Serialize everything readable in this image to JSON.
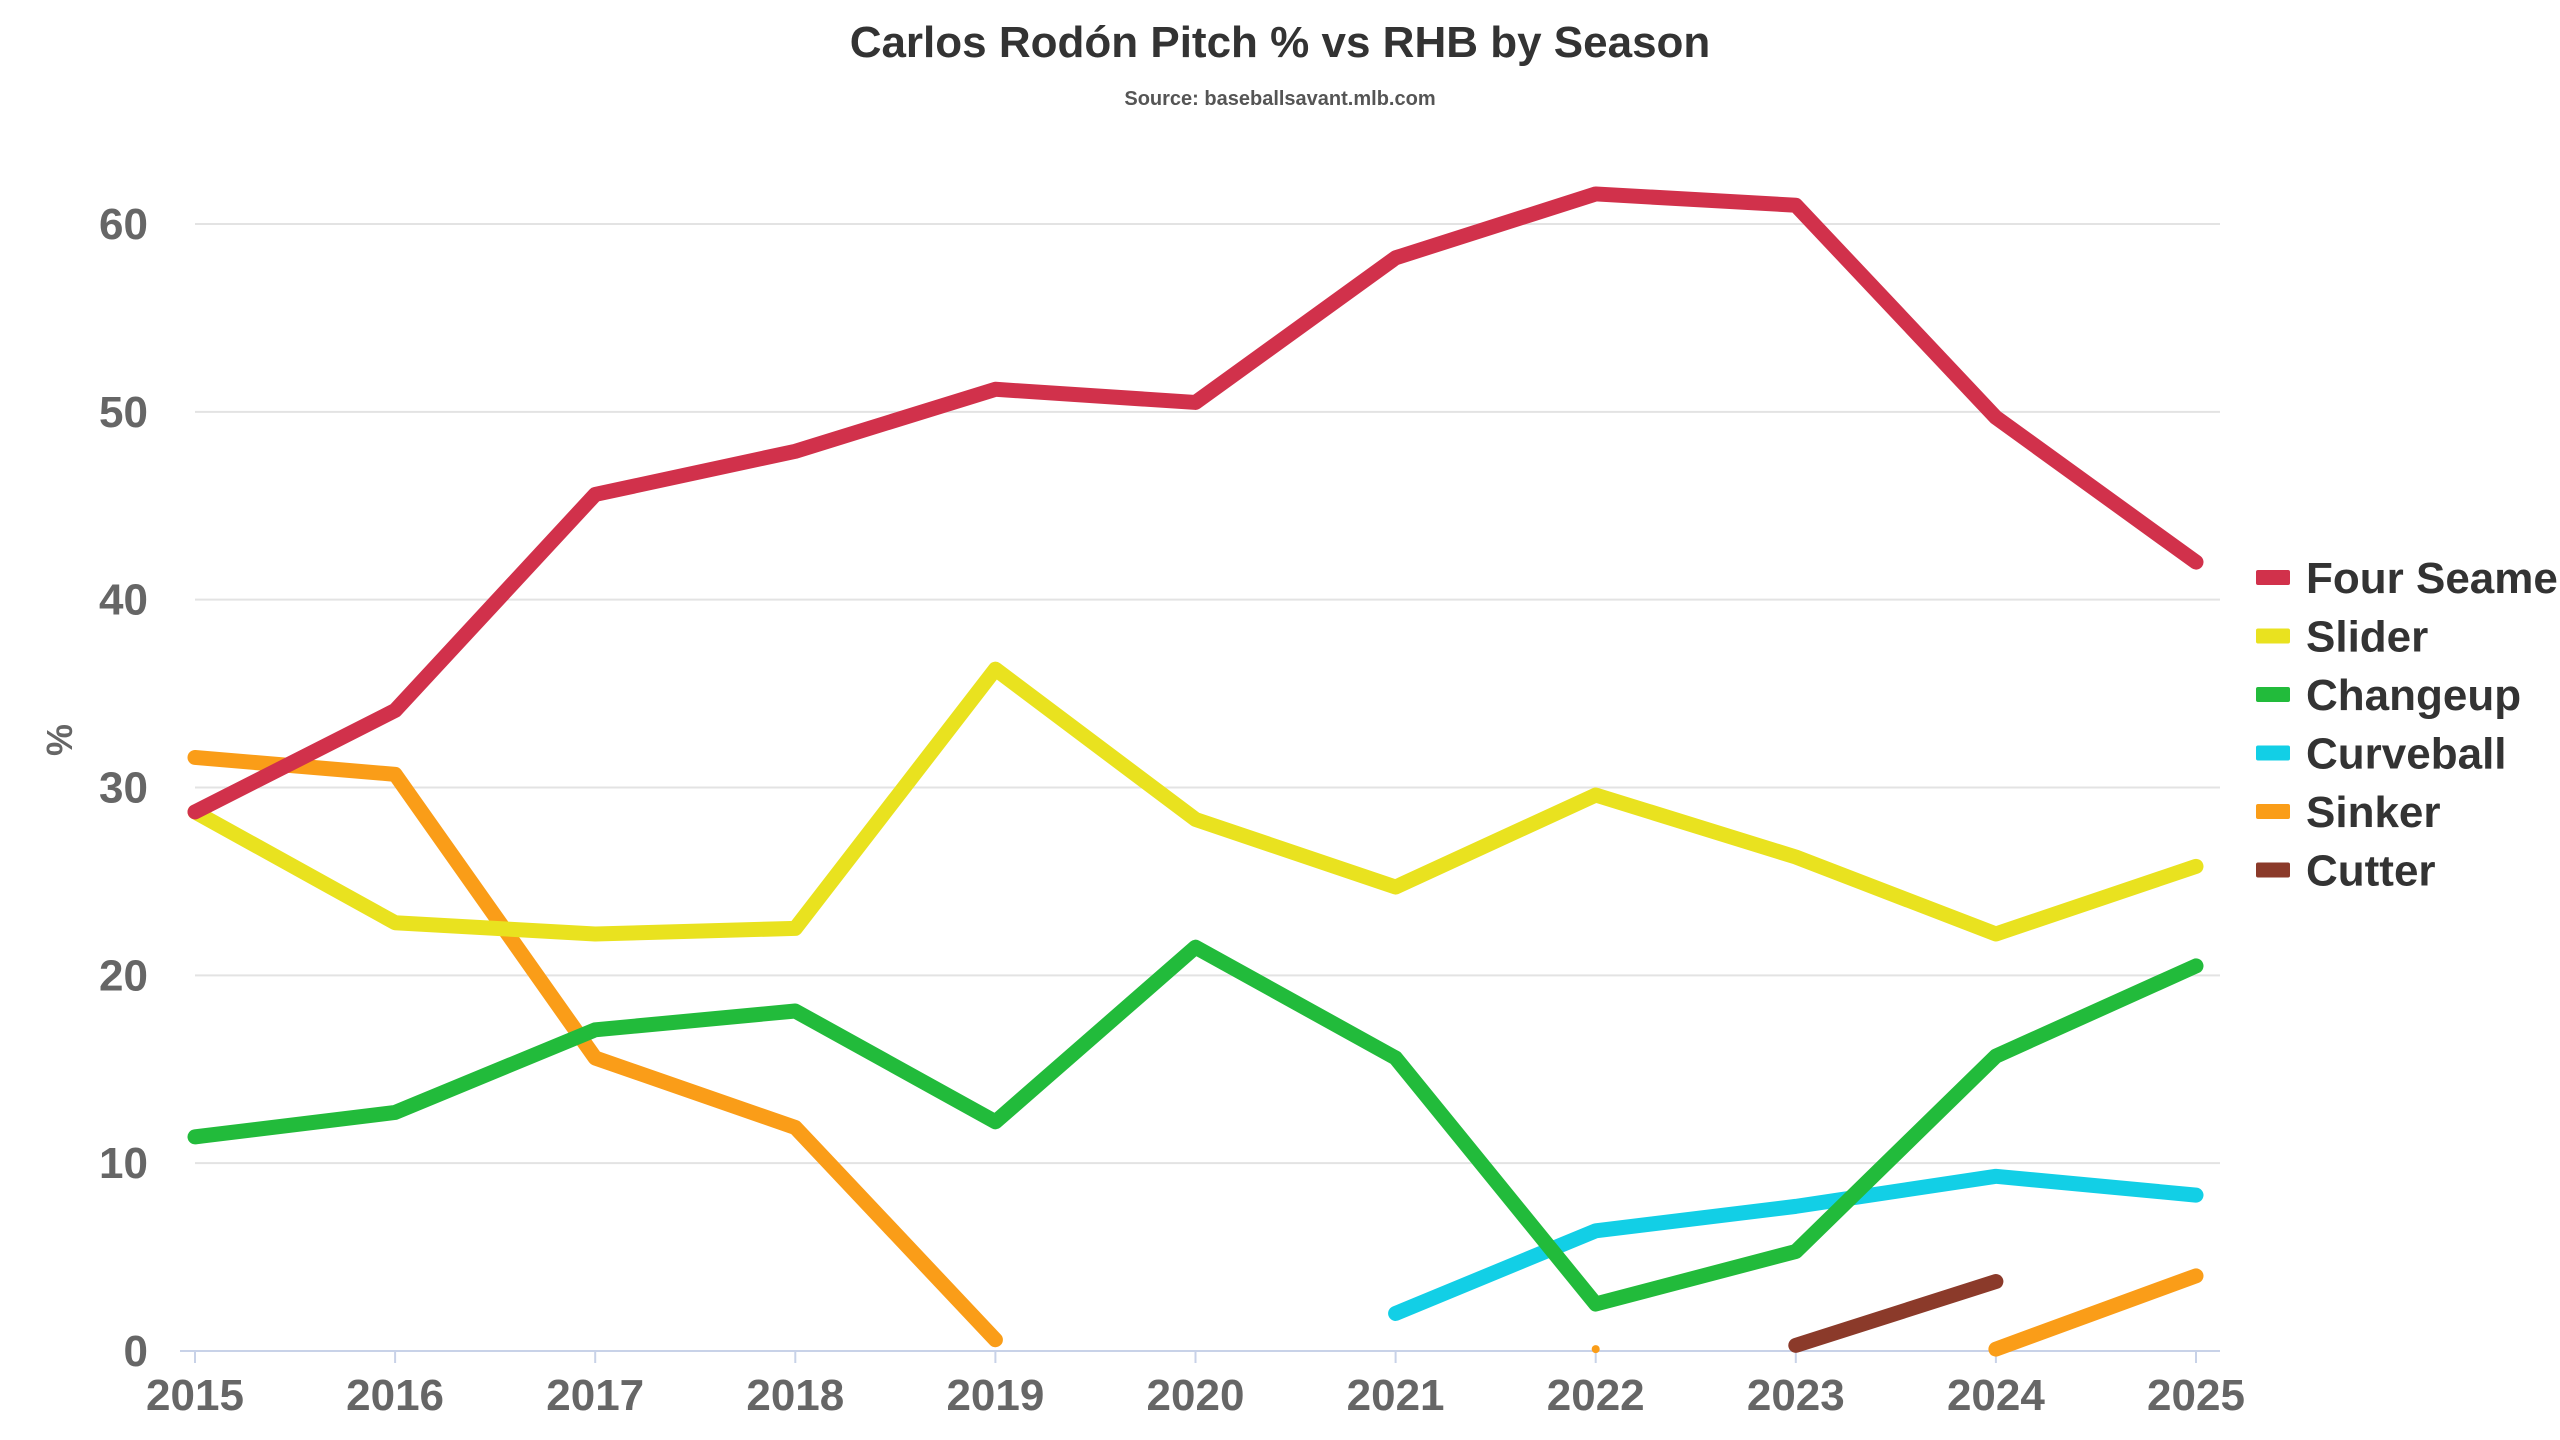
{
  "chart_data": {
    "type": "line",
    "title": "Carlos Rodón Pitch % vs RHB by Season",
    "subtitle": "Source: baseballsavant.mlb.com",
    "xlabel": "",
    "ylabel": "%",
    "x": [
      "2015",
      "2016",
      "2017",
      "2018",
      "2019",
      "2020",
      "2021",
      "2022",
      "2023",
      "2024",
      "2025"
    ],
    "ylim": [
      0,
      65
    ],
    "yticks": [
      0,
      10,
      20,
      30,
      40,
      50,
      60
    ],
    "grid": true,
    "legend_position": "right",
    "series": [
      {
        "name": "Four Seamer",
        "color": "#d1314b",
        "values": [
          28.7,
          34.1,
          45.6,
          47.9,
          51.2,
          50.5,
          58.2,
          61.6,
          61.0,
          49.7,
          42.0
        ]
      },
      {
        "name": "Slider",
        "color": "#e9e21f",
        "values": [
          28.7,
          22.8,
          22.2,
          22.5,
          36.3,
          28.3,
          24.7,
          29.6,
          26.3,
          22.2,
          25.8
        ]
      },
      {
        "name": "Changeup",
        "color": "#22bb3b",
        "values": [
          11.4,
          12.7,
          17.1,
          18.1,
          12.2,
          21.5,
          15.6,
          2.5,
          5.3,
          15.7,
          20.5
        ]
      },
      {
        "name": "Curveball",
        "color": "#12cfe6",
        "values": [
          null,
          null,
          null,
          null,
          null,
          null,
          2.0,
          6.4,
          7.7,
          9.3,
          8.3
        ]
      },
      {
        "name": "Sinker",
        "color": "#fa9d18",
        "values": [
          31.6,
          30.7,
          15.6,
          11.9,
          0.6,
          null,
          null,
          0.1,
          null,
          0.1,
          4.0
        ]
      },
      {
        "name": "Cutter",
        "color": "#8b3a2a",
        "values": [
          null,
          null,
          null,
          null,
          null,
          null,
          null,
          null,
          0.3,
          3.7,
          null
        ]
      }
    ]
  }
}
